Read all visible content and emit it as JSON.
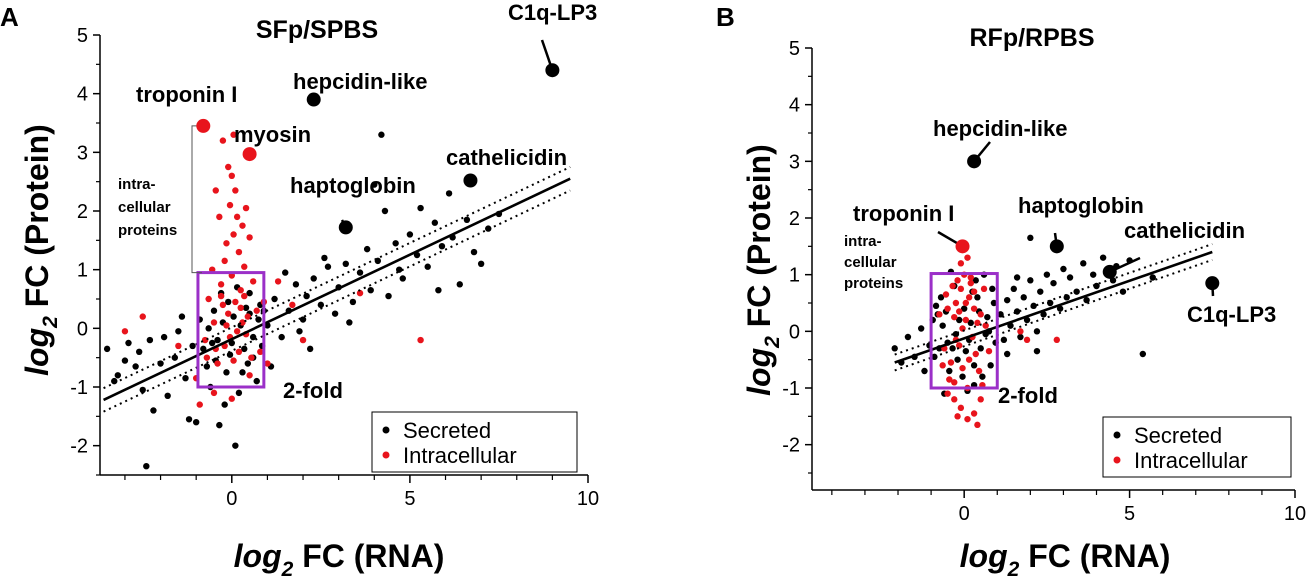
{
  "chart_data": [
    {
      "panel": "A",
      "type": "scatter",
      "title": "SFp/SPBS",
      "xlabel_main": "log",
      "xlabel_sub": "2",
      "xlabel_rest": " FC (RNA)",
      "ylabel_main": "log",
      "ylabel_sub": "2",
      "ylabel_rest": " FC (Protein)",
      "xlim": [
        -3.7,
        10
      ],
      "ylim": [
        -2.5,
        5
      ],
      "xticks": [
        0,
        5,
        10
      ],
      "yticks": [
        -2,
        -1,
        0,
        1,
        2,
        3,
        4,
        5
      ],
      "legend": {
        "position": "bottom-right",
        "entries": [
          {
            "label": "Secreted",
            "color": "#000000"
          },
          {
            "label": "Intracellular",
            "color": "#e8141c"
          }
        ]
      },
      "regression": {
        "x1": -3.6,
        "y1": -1.22,
        "x2": 9.5,
        "y2": 2.55,
        "ci_offset": 0.2
      },
      "box": {
        "x0": -0.95,
        "x1": 0.9,
        "y0": -1.0,
        "y1": 0.95,
        "label": "2-fold"
      },
      "bracket": {
        "y_top": 3.45,
        "y_bottom": 0.95,
        "label_lines": [
          "intra-",
          "cellular",
          "proteins"
        ]
      },
      "labeled_points": [
        {
          "name": "C1q-LP3",
          "x": 9.0,
          "y": 4.4,
          "color": "#000000"
        },
        {
          "name": "hepcidin-like",
          "x": 2.3,
          "y": 3.9,
          "color": "#000000"
        },
        {
          "name": "cathelicidin",
          "x": 6.7,
          "y": 2.52,
          "color": "#000000"
        },
        {
          "name": "haptoglobin",
          "x": 3.2,
          "y": 1.72,
          "color": "#000000"
        },
        {
          "name": "troponin I",
          "x": -0.8,
          "y": 3.45,
          "color": "#e8141c"
        },
        {
          "name": "myosin",
          "x": 0.5,
          "y": 2.97,
          "color": "#e8141c"
        }
      ],
      "secreted": [
        [
          -3.5,
          -0.35
        ],
        [
          -3.2,
          -0.8
        ],
        [
          -3.0,
          -0.55
        ],
        [
          -2.9,
          -0.25
        ],
        [
          -2.6,
          -0.4
        ],
        [
          -2.5,
          -1.05
        ],
        [
          -2.3,
          -0.2
        ],
        [
          -2.2,
          -1.4
        ],
        [
          -2.0,
          -0.6
        ],
        [
          -1.8,
          -1.15
        ],
        [
          -1.6,
          -0.5
        ],
        [
          -1.5,
          -0.05
        ],
        [
          -1.3,
          -0.85
        ],
        [
          -1.2,
          -1.55
        ],
        [
          -1.0,
          -1.6
        ],
        [
          -0.8,
          -0.35
        ],
        [
          -0.6,
          -1.0
        ],
        [
          -0.4,
          -0.2
        ],
        [
          -0.2,
          -1.3
        ],
        [
          0.0,
          -0.25
        ],
        [
          0.1,
          -2.0
        ],
        [
          -0.35,
          -1.65
        ],
        [
          -2.4,
          -2.35
        ],
        [
          0.3,
          -0.75
        ],
        [
          0.4,
          0.35
        ],
        [
          0.6,
          -0.5
        ],
        [
          0.8,
          0.4
        ],
        [
          1.0,
          0.05
        ],
        [
          1.2,
          0.5
        ],
        [
          1.4,
          -0.15
        ],
        [
          1.6,
          0.3
        ],
        [
          1.8,
          0.75
        ],
        [
          2.0,
          0.15
        ],
        [
          2.1,
          0.55
        ],
        [
          2.3,
          0.85
        ],
        [
          2.5,
          0.4
        ],
        [
          2.7,
          1.05
        ],
        [
          2.9,
          0.25
        ],
        [
          3.0,
          0.7
        ],
        [
          3.2,
          1.1
        ],
        [
          3.4,
          0.45
        ],
        [
          3.6,
          0.95
        ],
        [
          3.8,
          1.35
        ],
        [
          3.9,
          0.65
        ],
        [
          4.0,
          2.45
        ],
        [
          4.1,
          1.15
        ],
        [
          4.2,
          3.3
        ],
        [
          4.3,
          2.0
        ],
        [
          4.4,
          0.55
        ],
        [
          4.6,
          1.45
        ],
        [
          4.8,
          0.85
        ],
        [
          5.0,
          1.6
        ],
        [
          5.2,
          1.25
        ],
        [
          5.3,
          2.05
        ],
        [
          5.5,
          1.05
        ],
        [
          5.7,
          1.8
        ],
        [
          5.9,
          1.4
        ],
        [
          6.1,
          2.3
        ],
        [
          6.2,
          1.55
        ],
        [
          6.4,
          0.75
        ],
        [
          6.6,
          1.85
        ],
        [
          6.8,
          1.3
        ],
        [
          7.0,
          1.1
        ],
        [
          7.2,
          1.7
        ],
        [
          7.5,
          1.95
        ],
        [
          5.8,
          0.65
        ],
        [
          4.7,
          1.0
        ],
        [
          3.3,
          0.1
        ],
        [
          2.2,
          -0.35
        ],
        [
          1.1,
          -0.65
        ],
        [
          1.5,
          0.95
        ],
        [
          2.6,
          1.2
        ],
        [
          1.9,
          -0.05
        ],
        [
          0.5,
          0.6
        ],
        [
          0.7,
          -0.9
        ],
        [
          -0.1,
          0.45
        ],
        [
          -0.5,
          0.3
        ],
        [
          -0.7,
          -0.65
        ],
        [
          -1.1,
          -0.3
        ],
        [
          -1.4,
          0.2
        ],
        [
          -1.9,
          -0.15
        ],
        [
          -2.7,
          -0.65
        ],
        [
          -3.3,
          -0.9
        ],
        [
          0.2,
          -1.1
        ],
        [
          0.5,
          0.25
        ],
        [
          0.9,
          0.3
        ],
        [
          -0.9,
          0.15
        ],
        [
          -0.3,
          0.6
        ],
        [
          0.15,
          0.7
        ],
        [
          -0.45,
          -0.55
        ],
        [
          0.35,
          -0.35
        ],
        [
          0.75,
          0.15
        ],
        [
          -0.65,
          0.0
        ],
        [
          -0.15,
          -0.75
        ],
        [
          0.05,
          0.2
        ],
        [
          0.25,
          0.05
        ],
        [
          -0.25,
          0.1
        ],
        [
          0.6,
          -0.15
        ],
        [
          -0.55,
          -0.25
        ],
        [
          0.45,
          -0.6
        ],
        [
          -0.05,
          -0.45
        ],
        [
          0.85,
          -0.3
        ]
      ],
      "intracellular": [
        [
          -3.0,
          -0.05
        ],
        [
          -2.5,
          0.2
        ],
        [
          -1.5,
          -0.3
        ],
        [
          -1.0,
          -0.85
        ],
        [
          -0.7,
          -0.5
        ],
        [
          -0.5,
          0.1
        ],
        [
          -0.3,
          0.55
        ],
        [
          -0.2,
          -0.3
        ],
        [
          -0.1,
          2.75
        ],
        [
          0.0,
          2.6
        ],
        [
          0.1,
          2.35
        ],
        [
          -0.05,
          2.1
        ],
        [
          0.15,
          1.9
        ],
        [
          0.3,
          1.75
        ],
        [
          0.05,
          1.6
        ],
        [
          -0.15,
          1.45
        ],
        [
          0.2,
          1.3
        ],
        [
          -0.2,
          1.15
        ],
        [
          0.35,
          1.05
        ],
        [
          0.0,
          0.9
        ],
        [
          -0.3,
          0.75
        ],
        [
          0.25,
          0.65
        ],
        [
          0.1,
          0.45
        ],
        [
          -0.1,
          0.25
        ],
        [
          0.3,
          0.1
        ],
        [
          0.4,
          -0.1
        ],
        [
          0.2,
          -0.4
        ],
        [
          -0.4,
          -0.6
        ],
        [
          0.5,
          -0.8
        ],
        [
          -0.5,
          -1.1
        ],
        [
          0.0,
          -1.2
        ],
        [
          -0.9,
          -1.3
        ],
        [
          -0.25,
          3.2
        ],
        [
          0.05,
          3.3
        ],
        [
          -0.35,
          1.9
        ],
        [
          0.4,
          2.05
        ],
        [
          -0.45,
          2.35
        ],
        [
          0.5,
          1.55
        ],
        [
          -0.55,
          1.0
        ],
        [
          0.6,
          0.8
        ],
        [
          0.7,
          0.3
        ],
        [
          -0.65,
          0.5
        ],
        [
          0.8,
          -0.4
        ],
        [
          -0.75,
          -0.2
        ],
        [
          0.9,
          0.45
        ],
        [
          1.0,
          -0.6
        ],
        [
          1.3,
          0.8
        ],
        [
          1.7,
          0.4
        ],
        [
          2.0,
          -0.2
        ],
        [
          3.6,
          0.6
        ],
        [
          5.3,
          -0.2
        ],
        [
          0.15,
          -0.05
        ],
        [
          -0.05,
          -0.15
        ],
        [
          0.25,
          0.35
        ],
        [
          -0.25,
          0.4
        ],
        [
          0.45,
          0.2
        ],
        [
          -0.45,
          -0.35
        ],
        [
          0.55,
          -0.5
        ],
        [
          0.35,
          0.55
        ],
        [
          -0.15,
          0.05
        ],
        [
          0.05,
          -0.55
        ]
      ]
    },
    {
      "panel": "B",
      "type": "scatter",
      "title": "RFp/RPBS",
      "xlabel_main": "log",
      "xlabel_sub": "2",
      "xlabel_rest": " FC (RNA)",
      "ylabel_main": "log",
      "ylabel_sub": "2",
      "ylabel_rest": " FC (Protein)",
      "xlim": [
        -4.6,
        10
      ],
      "ylim": [
        -2.8,
        5
      ],
      "xticks": [
        0,
        5,
        10
      ],
      "yticks": [
        -2,
        -1,
        0,
        1,
        2,
        3,
        4,
        5
      ],
      "legend": {
        "position": "bottom-right",
        "entries": [
          {
            "label": "Secreted",
            "color": "#000000"
          },
          {
            "label": "Intracellular",
            "color": "#e8141c"
          }
        ]
      },
      "regression": {
        "x1": -2.1,
        "y1": -0.55,
        "x2": 7.5,
        "y2": 1.4,
        "ci_offset": 0.14
      },
      "box": {
        "x0": -1.0,
        "x1": 1.0,
        "y0": -1.0,
        "y1": 1.02,
        "label": "2-fold"
      },
      "bracket": {
        "label_lines": [
          "intra-",
          "cellular",
          "proteins"
        ]
      },
      "labeled_points": [
        {
          "name": "hepcidin-like",
          "x": 0.3,
          "y": 3.0,
          "color": "#000000"
        },
        {
          "name": "haptoglobin",
          "x": 2.8,
          "y": 1.5,
          "color": "#000000"
        },
        {
          "name": "cathelicidin",
          "x": 4.4,
          "y": 1.05,
          "color": "#000000"
        },
        {
          "name": "C1q-LP3",
          "x": 7.5,
          "y": 0.85,
          "color": "#000000"
        },
        {
          "name": "troponin I",
          "x": -0.05,
          "y": 1.5,
          "color": "#e8141c"
        }
      ],
      "secreted": [
        [
          -2.1,
          -0.3
        ],
        [
          -1.9,
          -0.55
        ],
        [
          -1.7,
          -0.1
        ],
        [
          -1.5,
          -0.45
        ],
        [
          -1.3,
          0.05
        ],
        [
          -1.2,
          -0.7
        ],
        [
          -1.05,
          -0.25
        ],
        [
          1.1,
          0.3
        ],
        [
          1.2,
          -0.15
        ],
        [
          1.3,
          0.55
        ],
        [
          1.4,
          0.1
        ],
        [
          1.5,
          0.75
        ],
        [
          1.6,
          0.35
        ],
        [
          1.7,
          -0.1
        ],
        [
          1.8,
          0.6
        ],
        [
          1.9,
          0.2
        ],
        [
          2.0,
          0.9
        ],
        [
          2.1,
          0.45
        ],
        [
          2.2,
          0.0
        ],
        [
          2.3,
          0.7
        ],
        [
          2.4,
          0.3
        ],
        [
          2.5,
          1.0
        ],
        [
          2.6,
          0.5
        ],
        [
          2.7,
          0.85
        ],
        [
          2.9,
          0.4
        ],
        [
          3.0,
          1.1
        ],
        [
          3.1,
          0.6
        ],
        [
          3.2,
          0.95
        ],
        [
          3.4,
          0.7
        ],
        [
          3.6,
          1.2
        ],
        [
          3.7,
          0.55
        ],
        [
          3.9,
          1.0
        ],
        [
          4.0,
          0.8
        ],
        [
          4.2,
          1.3
        ],
        [
          4.5,
          0.9
        ],
        [
          4.6,
          1.15
        ],
        [
          4.8,
          0.7
        ],
        [
          5.0,
          1.25
        ],
        [
          5.4,
          -0.4
        ],
        [
          5.7,
          0.95
        ],
        [
          2.0,
          1.65
        ],
        [
          1.6,
          0.95
        ],
        [
          2.2,
          -0.35
        ],
        [
          1.3,
          -0.4
        ],
        [
          0.3,
          -0.95
        ],
        [
          -0.6,
          -1.1
        ],
        [
          0.1,
          -1.05
        ],
        [
          0.6,
          1.0
        ],
        [
          -0.4,
          1.05
        ],
        [
          0.4,
          0.6
        ],
        [
          -0.8,
          0.3
        ],
        [
          0.8,
          -0.6
        ],
        [
          -0.2,
          -0.5
        ],
        [
          0.2,
          0.15
        ],
        [
          -0.5,
          -0.2
        ],
        [
          0.5,
          -0.3
        ],
        [
          0.0,
          0.4
        ],
        [
          -0.7,
          0.6
        ],
        [
          0.7,
          0.25
        ],
        [
          -0.3,
          0.8
        ],
        [
          0.3,
          -0.6
        ],
        [
          -0.9,
          -0.45
        ],
        [
          0.9,
          0.5
        ],
        [
          0.15,
          -0.15
        ],
        [
          -0.15,
          0.2
        ],
        [
          0.45,
          0.35
        ],
        [
          -0.45,
          -0.7
        ],
        [
          0.65,
          -0.05
        ],
        [
          -0.65,
          0.1
        ],
        [
          0.85,
          0.75
        ],
        [
          -0.85,
          0.45
        ],
        [
          0.05,
          -0.35
        ],
        [
          -0.05,
          -0.8
        ],
        [
          0.25,
          0.7
        ],
        [
          -0.25,
          -0.05
        ],
        [
          0.55,
          -0.8
        ],
        [
          -0.55,
          0.35
        ],
        [
          0.75,
          0.0
        ],
        [
          -0.75,
          -0.3
        ],
        [
          0.35,
          0.9
        ],
        [
          -0.35,
          -0.3
        ],
        [
          0.95,
          -0.2
        ],
        [
          -0.95,
          0.2
        ]
      ],
      "intracellular": [
        [
          -0.3,
          -1.2
        ],
        [
          -0.1,
          -1.35
        ],
        [
          0.1,
          -1.55
        ],
        [
          0.3,
          -1.45
        ],
        [
          0.5,
          -1.2
        ],
        [
          -0.5,
          -1.1
        ],
        [
          0.4,
          -1.65
        ],
        [
          -0.2,
          -1.5
        ],
        [
          0.0,
          1.0
        ],
        [
          -0.2,
          0.9
        ],
        [
          0.2,
          0.95
        ],
        [
          -0.1,
          0.75
        ],
        [
          0.15,
          0.6
        ],
        [
          -0.25,
          0.5
        ],
        [
          0.3,
          0.4
        ],
        [
          -0.3,
          0.25
        ],
        [
          0.05,
          0.2
        ],
        [
          -0.05,
          0.05
        ],
        [
          0.25,
          -0.1
        ],
        [
          -0.15,
          -0.25
        ],
        [
          0.35,
          -0.4
        ],
        [
          -0.4,
          -0.55
        ],
        [
          0.45,
          -0.7
        ],
        [
          -0.45,
          -0.85
        ],
        [
          0.55,
          -0.95
        ],
        [
          -0.55,
          0.65
        ],
        [
          0.6,
          0.75
        ],
        [
          -0.6,
          -0.3
        ],
        [
          0.65,
          0.1
        ],
        [
          -0.65,
          -0.6
        ],
        [
          0.75,
          -0.35
        ],
        [
          -0.75,
          0.3
        ],
        [
          -0.1,
          1.2
        ],
        [
          0.1,
          1.3
        ],
        [
          0.2,
          0.85
        ],
        [
          -0.35,
          0.8
        ],
        [
          0.4,
          0.15
        ],
        [
          -0.3,
          -0.9
        ],
        [
          0.1,
          -1.0
        ],
        [
          2.8,
          -0.15
        ],
        [
          -0.15,
          0.35
        ],
        [
          0.15,
          -0.5
        ],
        [
          0.05,
          0.5
        ],
        [
          -0.05,
          -0.65
        ],
        [
          0.3,
          0.7
        ],
        [
          -0.25,
          -0.15
        ],
        [
          0.5,
          0.3
        ],
        [
          -0.5,
          0.4
        ],
        [
          1.9,
          -0.15
        ],
        [
          1.7,
          0.0
        ]
      ]
    }
  ]
}
